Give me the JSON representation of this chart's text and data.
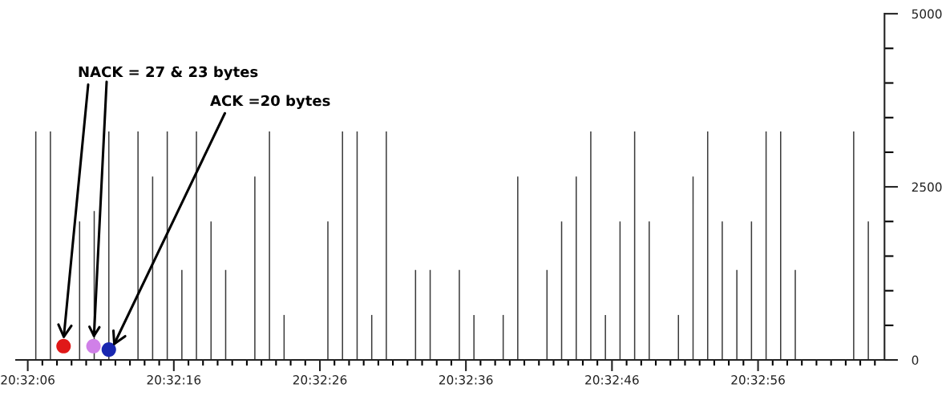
{
  "chart_data": {
    "type": "bar",
    "x": [
      20.535153,
      20.535431,
      20.535986,
      20.536264,
      20.536542,
      20.537097,
      20.537375,
      20.537653,
      20.537931,
      20.538208,
      20.538486,
      20.538764,
      20.539319,
      20.539597,
      20.539875,
      20.540708,
      20.540986,
      20.541264,
      20.541542,
      20.541819,
      20.542375,
      20.542653,
      20.543208,
      20.543486,
      20.544042,
      20.544319,
      20.544875,
      20.545153,
      20.545431,
      20.545708,
      20.545986,
      20.546264,
      20.546542,
      20.546819,
      20.547375,
      20.547653,
      20.547931,
      20.548208,
      20.548486,
      20.548764,
      20.549042,
      20.549319,
      20.549597,
      20.550708,
      20.550986
    ],
    "series": [
      {
        "color": "#3a3a3a",
        "values": [
          3300,
          3300,
          2000,
          2150,
          3300,
          3300,
          2650,
          3300,
          1300,
          3300,
          2000,
          1300,
          2650,
          3300,
          650,
          2000,
          3300,
          3300,
          650,
          3300,
          1300,
          1300,
          1300,
          650,
          650,
          2650,
          1300,
          2000,
          2650,
          3300,
          650,
          2000,
          3300,
          2000,
          650,
          2650,
          3300,
          2000,
          1300,
          2000,
          3300,
          3300,
          1300,
          3300,
          2000
        ]
      },
      {
        "type": "scatter",
        "x": [
          20.535681,
          20.53625,
          20.536542
        ],
        "colors": [
          "#e01818",
          "#d080e8",
          "#1a28b0"
        ],
        "values": [
          200,
          200,
          150
        ]
      }
    ],
    "annotations": [
      {
        "text": "NACK = 27 & 23 bytes",
        "x": 20.535681,
        "y": 300
      },
      {
        "text": "ACK =20 bytes",
        "x": 20.536625,
        "y": 200
      }
    ],
    "xlim": [
      20.534778,
      20.551294
    ],
    "xticks": [
      {
        "value": 20.535,
        "label": "20:32:06"
      },
      {
        "value": 20.535278,
        "label": null
      },
      {
        "value": 20.535556,
        "label": null
      },
      {
        "value": 20.535833,
        "label": null
      },
      {
        "value": 20.536111,
        "label": null
      },
      {
        "value": 20.536389,
        "label": null
      },
      {
        "value": 20.536667,
        "label": null
      },
      {
        "value": 20.536944,
        "label": null
      },
      {
        "value": 20.537222,
        "label": null
      },
      {
        "value": 20.5375,
        "label": null
      },
      {
        "value": 20.537778,
        "label": "20:32:16"
      },
      {
        "value": 20.538056,
        "label": null
      },
      {
        "value": 20.538333,
        "label": null
      },
      {
        "value": 20.538611,
        "label": null
      },
      {
        "value": 20.538889,
        "label": null
      },
      {
        "value": 20.539167,
        "label": null
      },
      {
        "value": 20.539444,
        "label": null
      },
      {
        "value": 20.539722,
        "label": null
      },
      {
        "value": 20.54,
        "label": null
      },
      {
        "value": 20.540278,
        "label": null
      },
      {
        "value": 20.540556,
        "label": "20:32:26"
      },
      {
        "value": 20.540833,
        "label": null
      },
      {
        "value": 20.541111,
        "label": null
      },
      {
        "value": 20.541389,
        "label": null
      },
      {
        "value": 20.541667,
        "label": null
      },
      {
        "value": 20.541944,
        "label": null
      },
      {
        "value": 20.542222,
        "label": null
      },
      {
        "value": 20.5425,
        "label": null
      },
      {
        "value": 20.542778,
        "label": null
      },
      {
        "value": 20.543056,
        "label": null
      },
      {
        "value": 20.543333,
        "label": "20:32:36"
      },
      {
        "value": 20.543611,
        "label": null
      },
      {
        "value": 20.543889,
        "label": null
      },
      {
        "value": 20.544167,
        "label": null
      },
      {
        "value": 20.544444,
        "label": null
      },
      {
        "value": 20.544722,
        "label": null
      },
      {
        "value": 20.545,
        "label": null
      },
      {
        "value": 20.545278,
        "label": null
      },
      {
        "value": 20.545556,
        "label": null
      },
      {
        "value": 20.545833,
        "label": null
      },
      {
        "value": 20.546111,
        "label": "20:32:46"
      },
      {
        "value": 20.546389,
        "label": null
      },
      {
        "value": 20.546667,
        "label": null
      },
      {
        "value": 20.546944,
        "label": null
      },
      {
        "value": 20.547222,
        "label": null
      },
      {
        "value": 20.5475,
        "label": null
      },
      {
        "value": 20.547778,
        "label": null
      },
      {
        "value": 20.548056,
        "label": null
      },
      {
        "value": 20.548333,
        "label": null
      },
      {
        "value": 20.548611,
        "label": null
      },
      {
        "value": 20.548889,
        "label": "20:32:56"
      },
      {
        "value": 20.549167,
        "label": null
      },
      {
        "value": 20.549444,
        "label": null
      },
      {
        "value": 20.549722,
        "label": null
      },
      {
        "value": 20.55,
        "label": null
      },
      {
        "value": 20.550278,
        "label": null
      },
      {
        "value": 20.550556,
        "label": null
      },
      {
        "value": 20.550833,
        "label": null
      },
      {
        "value": 20.551111,
        "label": null
      }
    ],
    "ylim": [
      0,
      5000
    ],
    "yticks": [
      0,
      {
        "value": 500,
        "label": null
      },
      {
        "value": 1000,
        "label": null
      },
      {
        "value": 1500,
        "label": null
      },
      {
        "value": 2000,
        "label": null
      },
      2500,
      {
        "value": 3000,
        "label": null
      },
      {
        "value": 3500,
        "label": null
      },
      {
        "value": 4000,
        "label": null
      },
      {
        "value": 4500,
        "label": null
      },
      5000
    ],
    "grid": false
  }
}
